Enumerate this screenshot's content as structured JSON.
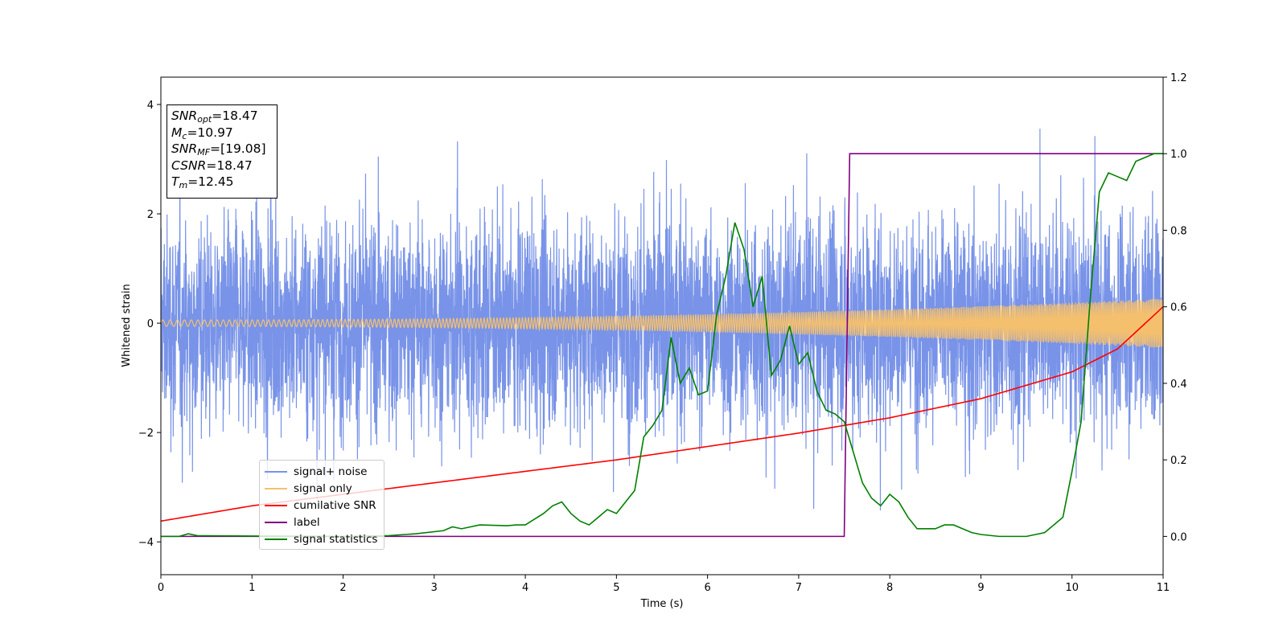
{
  "chart_data": {
    "type": "line",
    "title": "",
    "xlabel": "Time (s)",
    "ylabel": "Whitened strain",
    "xlim": [
      0,
      11
    ],
    "ylim": [
      -4.6,
      4.5
    ],
    "y2lim": [
      -0.1,
      1.2
    ],
    "x_ticks": [
      "0",
      "1",
      "2",
      "3",
      "4",
      "5",
      "6",
      "7",
      "8",
      "9",
      "10",
      "11"
    ],
    "y_ticks": [
      "4",
      "2",
      "0",
      "−2",
      "−4"
    ],
    "y2_ticks": [
      "1.2",
      "1.0",
      "0.8",
      "0.6",
      "0.4",
      "0.2",
      "0.0"
    ],
    "legend_position": "lower-left",
    "legend": [
      "signal+ noise",
      "signal only",
      "cumilative SNR",
      "label",
      "signal statistics"
    ],
    "colors": {
      "noise": "#7893e8",
      "signal": "#f5c06e",
      "cumulative_snr": "#ff0000",
      "label": "#800080",
      "statistics": "#008000"
    },
    "annotations": {
      "snr_opt": {
        "sym": "SNR",
        "sub": "opt",
        "value": "=18.47"
      },
      "mc": {
        "sym": "M",
        "sub": "c",
        "value": "=10.97"
      },
      "snr_mf": {
        "sym": "SNR",
        "sub": "MF",
        "value": "=[19.08]"
      },
      "csnr": {
        "sym": "CSNR",
        "sub": "",
        "value": "=18.47"
      },
      "tm": {
        "sym": "T",
        "sub": "m",
        "value": "=12.45"
      }
    },
    "series": [
      {
        "name": "signal+ noise",
        "axis": "left",
        "description_values": {
          "std": 1.0,
          "min": -4.2,
          "max": 4.1
        }
      },
      {
        "name": "signal only",
        "axis": "left",
        "amplitude_start": 0.06,
        "amplitude_end": 0.45,
        "x_start": 0,
        "x_end": 11
      },
      {
        "name": "cumilative SNR",
        "axis": "right",
        "x": [
          0,
          1,
          2,
          3,
          4,
          5,
          6,
          7,
          7.5,
          8,
          9,
          10,
          10.5,
          11
        ],
        "y": [
          0.04,
          0.08,
          0.11,
          0.14,
          0.17,
          0.2,
          0.235,
          0.27,
          0.29,
          0.31,
          0.36,
          0.43,
          0.49,
          0.6
        ]
      },
      {
        "name": "label",
        "axis": "right",
        "x": [
          0,
          7.5,
          7.56,
          11
        ],
        "y": [
          0.0,
          0.0,
          1.0,
          1.0
        ]
      },
      {
        "name": "signal statistics",
        "axis": "right",
        "x": [
          0,
          0.2,
          0.3,
          0.4,
          1.0,
          2.0,
          2.5,
          2.8,
          3.1,
          3.2,
          3.3,
          3.5,
          3.8,
          3.9,
          4.0,
          4.1,
          4.2,
          4.3,
          4.4,
          4.5,
          4.6,
          4.7,
          4.8,
          4.9,
          5.0,
          5.1,
          5.2,
          5.3,
          5.4,
          5.5,
          5.6,
          5.7,
          5.8,
          5.9,
          6.0,
          6.1,
          6.2,
          6.3,
          6.4,
          6.5,
          6.6,
          6.7,
          6.8,
          6.9,
          7.0,
          7.1,
          7.2,
          7.3,
          7.4,
          7.5,
          7.6,
          7.7,
          7.8,
          7.9,
          8.0,
          8.1,
          8.2,
          8.3,
          8.4,
          8.5,
          8.6,
          8.7,
          8.8,
          8.9,
          9.0,
          9.2,
          9.5,
          9.7,
          9.8,
          9.9,
          10.0,
          10.1,
          10.2,
          10.3,
          10.4,
          10.5,
          10.6,
          10.7,
          10.8,
          10.9,
          11.0
        ],
        "y": [
          0.0,
          0.0,
          0.007,
          0.002,
          0.001,
          0.0,
          0.002,
          0.007,
          0.015,
          0.025,
          0.02,
          0.03,
          0.028,
          0.03,
          0.03,
          0.045,
          0.06,
          0.08,
          0.09,
          0.06,
          0.04,
          0.03,
          0.05,
          0.07,
          0.06,
          0.09,
          0.12,
          0.26,
          0.29,
          0.33,
          0.52,
          0.4,
          0.44,
          0.37,
          0.38,
          0.58,
          0.68,
          0.82,
          0.75,
          0.6,
          0.68,
          0.42,
          0.46,
          0.55,
          0.45,
          0.48,
          0.38,
          0.33,
          0.32,
          0.3,
          0.22,
          0.14,
          0.1,
          0.08,
          0.11,
          0.09,
          0.05,
          0.02,
          0.02,
          0.02,
          0.03,
          0.03,
          0.02,
          0.01,
          0.005,
          0.0,
          0.0,
          0.01,
          0.03,
          0.05,
          0.17,
          0.3,
          0.62,
          0.9,
          0.95,
          0.94,
          0.93,
          0.98,
          0.99,
          1.0,
          1.0
        ]
      }
    ]
  }
}
